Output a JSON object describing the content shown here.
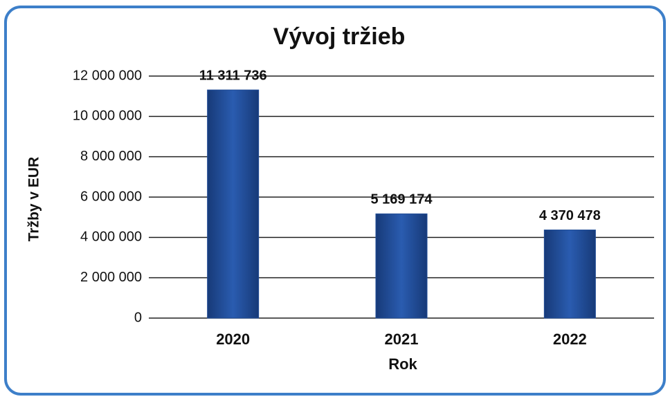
{
  "chart_data": {
    "type": "bar",
    "title": "Vývoj tržieb",
    "x_label": "Rok",
    "y_label": "Tržby v EUR",
    "categories": [
      "2020",
      "2021",
      "2022"
    ],
    "values": [
      11311736,
      5169174,
      4370478
    ],
    "value_labels": [
      "11 311 736",
      "5 169 174",
      "4 370 478"
    ],
    "color": "#1f4b96",
    "ylim": [
      0,
      12000000
    ],
    "yticks": [
      0,
      {
        "value": 2000000,
        "label": "2 000 000"
      },
      {
        "value": 4000000,
        "label": "4 000 000"
      },
      {
        "value": 6000000,
        "label": "6 000 000"
      },
      {
        "value": 8000000,
        "label": "8 000 000"
      },
      {
        "value": 10000000,
        "label": "10 000 000"
      },
      {
        "value": 12000000,
        "label": "12 000 000"
      }
    ],
    "grid": true
  }
}
